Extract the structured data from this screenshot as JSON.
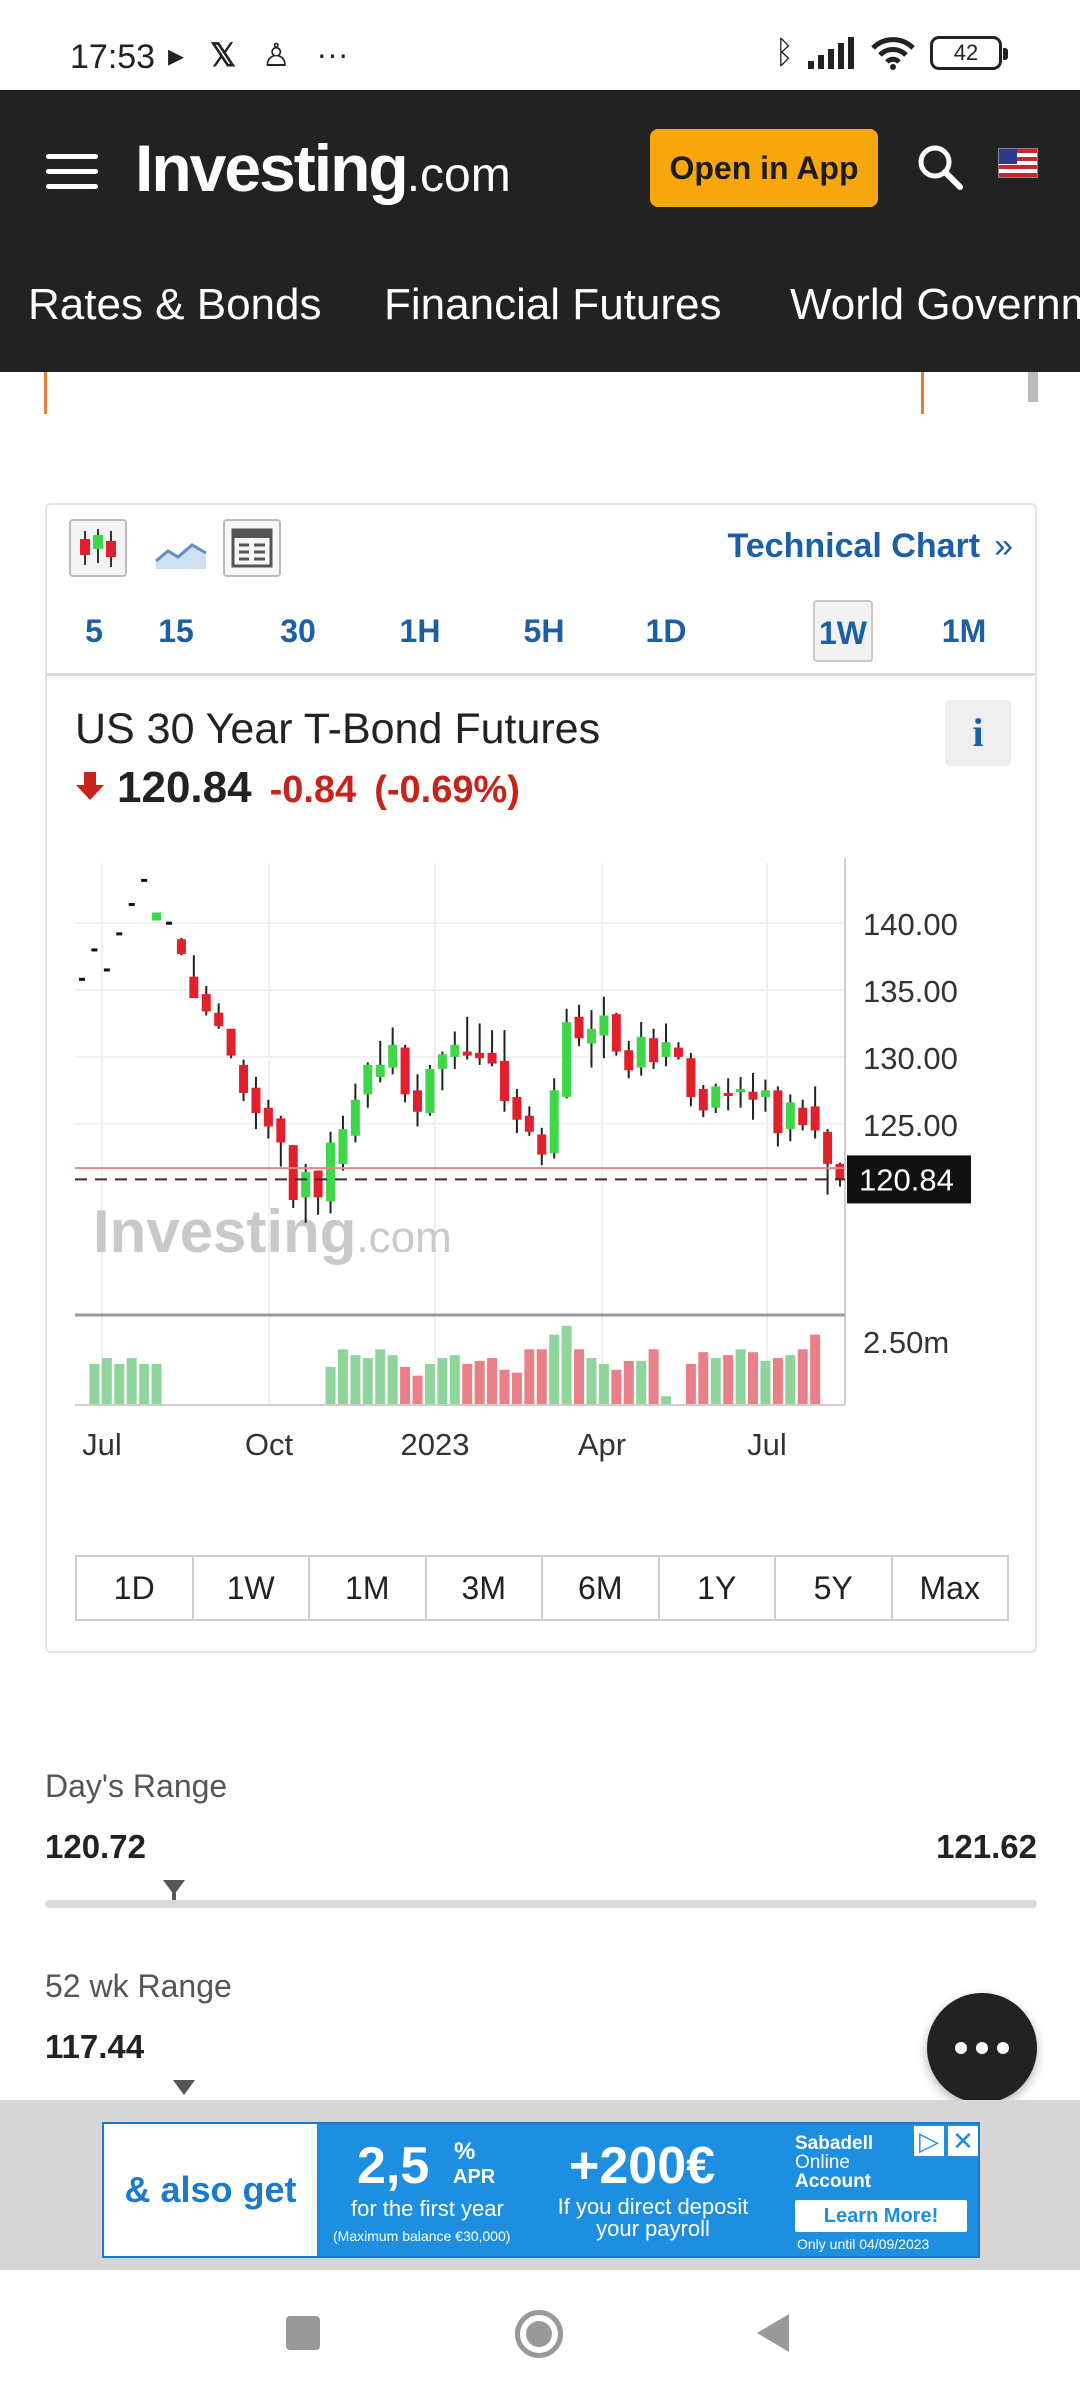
{
  "status_bar": {
    "time": "17:53",
    "battery": "42"
  },
  "header": {
    "logo_main": "Investing",
    "logo_suffix": ".com",
    "open_app_label": "Open in App"
  },
  "nav_tabs": [
    "Rates & Bonds",
    "Financial Futures",
    "World Governm"
  ],
  "chart_widget": {
    "technical_chart_label": "Technical Chart",
    "technical_chart_chevron": "»",
    "intervals": [
      "5",
      "15",
      "30",
      "1H",
      "5H",
      "1D",
      "1W",
      "1M"
    ],
    "active_interval": "1W",
    "instrument_name": "US 30 Year T-Bond Futures",
    "info_label": "i",
    "price": "120.84",
    "change": "-0.84",
    "change_pct": "(-0.69%)",
    "watermark_main": "Investing",
    "watermark_suffix": ".com",
    "range_buttons": [
      "1D",
      "1W",
      "1M",
      "3M",
      "6M",
      "1Y",
      "5Y",
      "Max"
    ],
    "colors": {
      "up": "#3fd64a",
      "down": "#e2202c",
      "accent": "#1b5fa6"
    }
  },
  "chart_data": {
    "type": "candlestick",
    "y_ticks": [
      "140.00",
      "135.00",
      "130.00",
      "125.00"
    ],
    "ylim": [
      111,
      144.5
    ],
    "last_price_label": "120.84",
    "volume_tick": "2.50m",
    "x_ticks": [
      "Jul",
      "Oct",
      "2023",
      "Apr",
      "Jul"
    ],
    "candles": [
      {
        "o": 135.8,
        "h": 135.8,
        "l": 135.8,
        "c": 135.8,
        "v": 0
      },
      {
        "o": 138.0,
        "h": 138.0,
        "l": 138.0,
        "c": 138.0,
        "v": 1.4
      },
      {
        "o": 136.5,
        "h": 136.5,
        "l": 136.5,
        "c": 136.5,
        "v": 1.6
      },
      {
        "o": 139.2,
        "h": 139.2,
        "l": 139.2,
        "c": 139.2,
        "v": 1.4
      },
      {
        "o": 141.4,
        "h": 141.4,
        "l": 141.4,
        "c": 141.4,
        "v": 1.6
      },
      {
        "o": 143.2,
        "h": 143.2,
        "l": 143.2,
        "c": 143.2,
        "v": 1.4
      },
      {
        "o": 140.2,
        "h": 140.8,
        "l": 140.2,
        "c": 140.8,
        "v": 1.4
      },
      {
        "o": 140.0,
        "h": 140.0,
        "l": 140.0,
        "c": 140.0,
        "v": 0
      },
      {
        "o": 138.8,
        "h": 138.9,
        "l": 137.6,
        "c": 137.7,
        "v": 0
      },
      {
        "o": 136.0,
        "h": 137.6,
        "l": 134.4,
        "c": 134.4,
        "v": 0
      },
      {
        "o": 134.7,
        "h": 135.3,
        "l": 133.1,
        "c": 133.4,
        "v": 0
      },
      {
        "o": 133.3,
        "h": 134.0,
        "l": 132.1,
        "c": 132.3,
        "v": 0
      },
      {
        "o": 132.1,
        "h": 132.1,
        "l": 129.9,
        "c": 130.1,
        "v": 0
      },
      {
        "o": 129.4,
        "h": 129.8,
        "l": 126.7,
        "c": 127.3,
        "v": 0
      },
      {
        "o": 127.7,
        "h": 128.5,
        "l": 124.6,
        "c": 125.8,
        "v": 0
      },
      {
        "o": 126.2,
        "h": 126.8,
        "l": 123.9,
        "c": 124.8,
        "v": 0
      },
      {
        "o": 125.4,
        "h": 125.6,
        "l": 121.8,
        "c": 123.6,
        "v": 0
      },
      {
        "o": 123.4,
        "h": 123.4,
        "l": 118.7,
        "c": 119.3,
        "v": 0
      },
      {
        "o": 119.5,
        "h": 122.0,
        "l": 117.6,
        "c": 121.4,
        "v": 0
      },
      {
        "o": 121.5,
        "h": 121.5,
        "l": 118.2,
        "c": 119.5,
        "v": 0
      },
      {
        "o": 119.2,
        "h": 124.4,
        "l": 118.3,
        "c": 123.6,
        "v": 1.3
      },
      {
        "o": 122.0,
        "h": 125.6,
        "l": 121.5,
        "c": 124.6,
        "v": 1.9
      },
      {
        "o": 124.1,
        "h": 128.0,
        "l": 123.6,
        "c": 126.8,
        "v": 1.7
      },
      {
        "o": 127.2,
        "h": 129.6,
        "l": 126.2,
        "c": 129.4,
        "v": 1.6
      },
      {
        "o": 128.5,
        "h": 131.2,
        "l": 128.1,
        "c": 129.4,
        "v": 1.9
      },
      {
        "o": 129.2,
        "h": 132.2,
        "l": 128.7,
        "c": 130.9,
        "v": 1.7
      },
      {
        "o": 130.7,
        "h": 130.9,
        "l": 126.6,
        "c": 127.2,
        "v": 1.3
      },
      {
        "o": 127.5,
        "h": 128.7,
        "l": 124.8,
        "c": 125.9,
        "v": 1.0
      },
      {
        "o": 125.8,
        "h": 129.4,
        "l": 125.6,
        "c": 129.1,
        "v": 1.4
      },
      {
        "o": 129.1,
        "h": 130.4,
        "l": 127.5,
        "c": 130.2,
        "v": 1.6
      },
      {
        "o": 130.0,
        "h": 131.9,
        "l": 129.1,
        "c": 130.9,
        "v": 1.7
      },
      {
        "o": 130.4,
        "h": 133.0,
        "l": 129.8,
        "c": 130.1,
        "v": 1.4
      },
      {
        "o": 130.3,
        "h": 132.5,
        "l": 129.4,
        "c": 129.9,
        "v": 1.5
      },
      {
        "o": 130.3,
        "h": 132.0,
        "l": 129.3,
        "c": 129.5,
        "v": 1.6
      },
      {
        "o": 129.7,
        "h": 132.0,
        "l": 125.9,
        "c": 126.7,
        "v": 1.2
      },
      {
        "o": 127.0,
        "h": 127.6,
        "l": 124.3,
        "c": 125.3,
        "v": 1.1
      },
      {
        "o": 125.6,
        "h": 126.3,
        "l": 124.1,
        "c": 124.4,
        "v": 1.9
      },
      {
        "o": 124.2,
        "h": 124.7,
        "l": 121.9,
        "c": 122.7,
        "v": 1.9
      },
      {
        "o": 122.8,
        "h": 128.4,
        "l": 122.4,
        "c": 127.5,
        "v": 2.4
      },
      {
        "o": 127.0,
        "h": 133.6,
        "l": 126.9,
        "c": 132.6,
        "v": 2.7
      },
      {
        "o": 133.0,
        "h": 133.9,
        "l": 130.8,
        "c": 131.4,
        "v": 1.9
      },
      {
        "o": 131.0,
        "h": 133.5,
        "l": 129.2,
        "c": 132.1,
        "v": 1.6
      },
      {
        "o": 131.6,
        "h": 134.5,
        "l": 129.9,
        "c": 133.1,
        "v": 1.4
      },
      {
        "o": 133.2,
        "h": 133.3,
        "l": 130.1,
        "c": 130.4,
        "v": 1.2
      },
      {
        "o": 130.5,
        "h": 131.2,
        "l": 128.4,
        "c": 129.0,
        "v": 1.5
      },
      {
        "o": 129.2,
        "h": 132.6,
        "l": 128.6,
        "c": 131.5,
        "v": 1.5
      },
      {
        "o": 131.4,
        "h": 132.1,
        "l": 129.1,
        "c": 129.6,
        "v": 1.9
      },
      {
        "o": 130.0,
        "h": 132.5,
        "l": 129.3,
        "c": 131.1,
        "v": 0.3
      },
      {
        "o": 130.7,
        "h": 131.1,
        "l": 129.8,
        "c": 130.0,
        "v": 0
      },
      {
        "o": 129.9,
        "h": 130.3,
        "l": 126.3,
        "c": 127.0,
        "v": 1.4
      },
      {
        "o": 127.6,
        "h": 127.9,
        "l": 125.5,
        "c": 126.0,
        "v": 1.8
      },
      {
        "o": 126.2,
        "h": 128.0,
        "l": 125.8,
        "c": 127.8,
        "v": 1.6
      },
      {
        "o": 127.3,
        "h": 128.4,
        "l": 126.0,
        "c": 127.1,
        "v": 1.7
      },
      {
        "o": 127.4,
        "h": 128.5,
        "l": 126.2,
        "c": 127.6,
        "v": 1.9
      },
      {
        "o": 127.4,
        "h": 128.8,
        "l": 125.3,
        "c": 126.8,
        "v": 1.8
      },
      {
        "o": 127.0,
        "h": 128.3,
        "l": 125.9,
        "c": 127.5,
        "v": 1.5
      },
      {
        "o": 127.5,
        "h": 127.8,
        "l": 123.3,
        "c": 124.3,
        "v": 1.6
      },
      {
        "o": 124.6,
        "h": 127.2,
        "l": 123.7,
        "c": 126.6,
        "v": 1.7
      },
      {
        "o": 126.2,
        "h": 126.8,
        "l": 124.5,
        "c": 124.9,
        "v": 1.9
      },
      {
        "o": 126.3,
        "h": 127.8,
        "l": 123.9,
        "c": 124.5,
        "v": 2.4
      },
      {
        "o": 124.4,
        "h": 124.6,
        "l": 119.7,
        "c": 122.0,
        "v": 0
      },
      {
        "o": 122.0,
        "h": 122.1,
        "l": 120.3,
        "c": 120.84,
        "v": 0
      }
    ]
  },
  "days_range": {
    "label": "Day's Range",
    "low": "120.72",
    "high": "121.62",
    "position": 0.13
  },
  "week52_range": {
    "label": "52 wk Range",
    "low": "117.44",
    "position": 0.14
  },
  "ad": {
    "left_text": "& also get",
    "apr_value": "2,5",
    "apr_pct": "%",
    "apr_label": "APR",
    "first_year": "for the first year",
    "max_balance": "(Maximum balance €30,000)",
    "bonus": "+200€",
    "deposit_line1": "If you direct deposit",
    "deposit_line2": "your payroll",
    "brand_line1": "Sabadell",
    "brand_line2": "Online",
    "brand_line3": "Account",
    "learn_more": "Learn More!",
    "valid_until": "Only until 04/09/2023"
  }
}
